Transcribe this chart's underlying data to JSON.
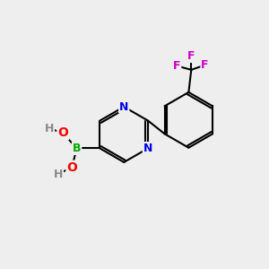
{
  "background_color": "#eeeeee",
  "bond_color": "#000000",
  "bond_width": 1.5,
  "atom_colors": {
    "N": "#0000ee",
    "B": "#00aa00",
    "O": "#ff0000",
    "F": "#cc00cc",
    "H": "#888888",
    "C": "#000000"
  },
  "font_size": 9,
  "fig_width": 3.0,
  "fig_height": 3.0,
  "dpi": 100
}
